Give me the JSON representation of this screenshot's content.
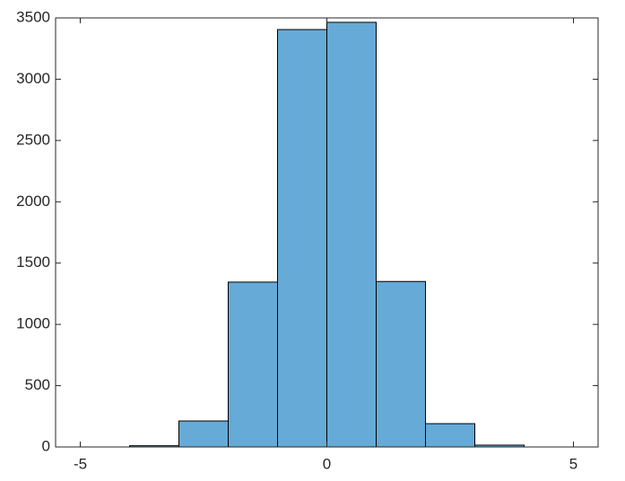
{
  "chart_data": {
    "type": "histogram",
    "bins": [
      -4,
      -3,
      -2,
      -1,
      0,
      1,
      2,
      3,
      4
    ],
    "values": [
      10,
      212,
      1345,
      3405,
      3464,
      1350,
      190,
      15
    ],
    "color": "#66aad7",
    "edgecolor": "#000000",
    "xlim": [
      -5.5,
      5.5
    ],
    "xticks": [
      -5,
      0,
      5
    ],
    "ylim": [
      0,
      3500
    ],
    "yticks": [
      0,
      500,
      1000,
      1500,
      2000,
      2500,
      3000,
      3500
    ]
  }
}
